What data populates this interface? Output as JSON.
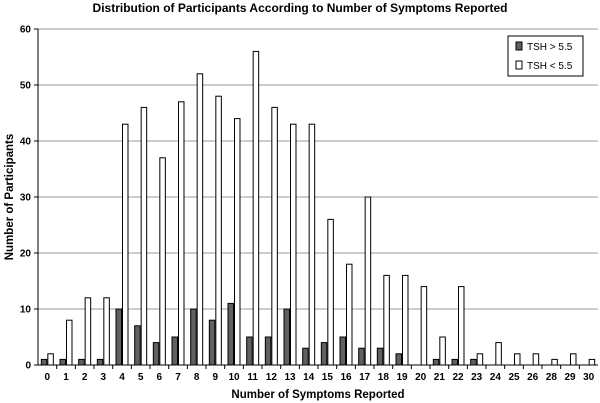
{
  "chart_data": {
    "type": "bar",
    "title": "Distribution of Participants According to Number of Symptoms Reported",
    "xlabel": "Number of Symptoms Reported",
    "ylabel": "Number of Participants",
    "ylim": [
      0,
      60
    ],
    "yticks": [
      0,
      10,
      20,
      30,
      40,
      50,
      60
    ],
    "grid": true,
    "legend_position": "top-right",
    "categories": [
      "0",
      "1",
      "2",
      "3",
      "4",
      "5",
      "6",
      "7",
      "8",
      "9",
      "10",
      "11",
      "12",
      "13",
      "14",
      "15",
      "16",
      "17",
      "18",
      "19",
      "20",
      "21",
      "22",
      "23",
      "24",
      "25",
      "26",
      "28",
      "29",
      "30"
    ],
    "series": [
      {
        "name": "TSH > 5.5",
        "color": "#606060",
        "values": [
          1,
          1,
          1,
          1,
          10,
          7,
          4,
          5,
          10,
          8,
          11,
          5,
          5,
          10,
          3,
          4,
          5,
          3,
          3,
          2,
          0,
          1,
          1,
          1,
          0,
          0,
          0,
          0,
          0,
          0
        ]
      },
      {
        "name": "TSH < 5.5",
        "color": "#ffffff",
        "values": [
          2,
          8,
          12,
          12,
          43,
          46,
          37,
          47,
          52,
          48,
          44,
          56,
          46,
          43,
          43,
          26,
          18,
          30,
          16,
          16,
          14,
          5,
          14,
          2,
          4,
          2,
          2,
          1,
          2,
          1
        ]
      }
    ]
  }
}
